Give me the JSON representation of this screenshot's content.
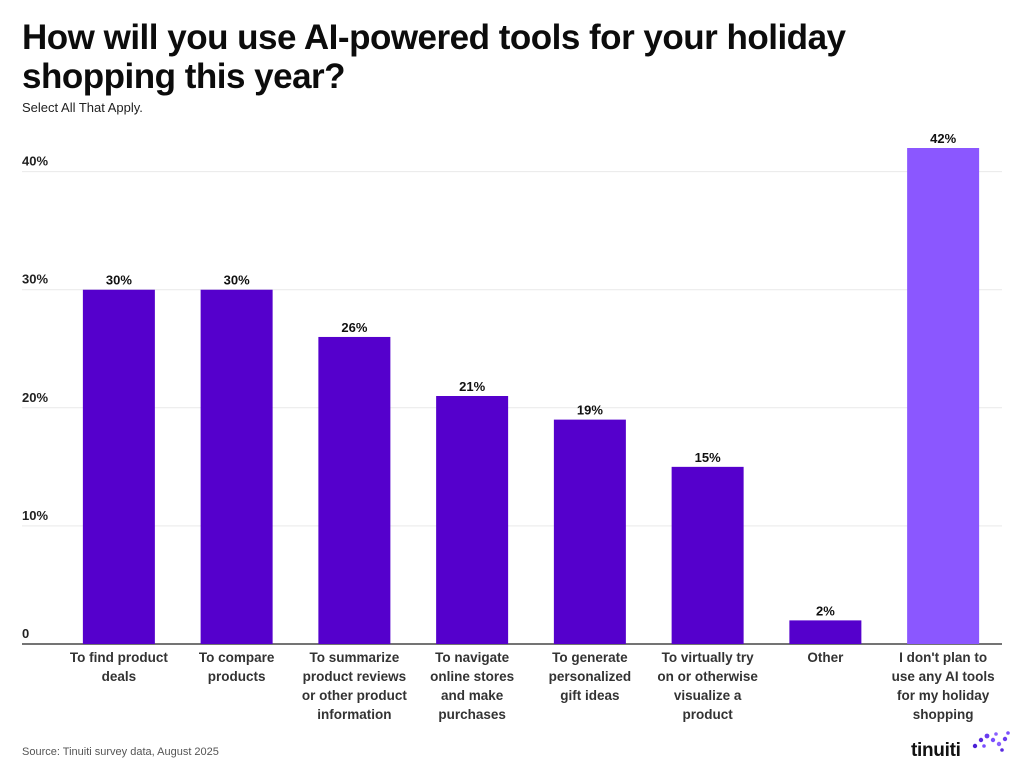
{
  "header": {
    "title": "How will you use AI-powered tools for your holiday shopping this year?",
    "subtitle": "Select All That Apply."
  },
  "footer": {
    "source": "Source: Tinuiti survey data, August 2025",
    "logo_text": "tinuiti"
  },
  "colors": {
    "bar": "#5500cc",
    "bar_highlight": "#8b57ff",
    "grid": "#e9e9e9",
    "axis": "#222222"
  },
  "chart_data": {
    "type": "bar",
    "categories": [
      [
        "To find product",
        "deals"
      ],
      [
        "To compare",
        "products"
      ],
      [
        "To summarize",
        "product reviews",
        "or other product",
        "information"
      ],
      [
        "To navigate",
        "online stores",
        "and make",
        "purchases"
      ],
      [
        "To generate",
        "personalized",
        "gift ideas"
      ],
      [
        "To virtually try",
        "on or otherwise",
        "visualize a",
        "product"
      ],
      [
        "Other"
      ],
      [
        "I don't plan to",
        "use any AI tools",
        "for my holiday",
        "shopping"
      ]
    ],
    "values": [
      30,
      30,
      26,
      21,
      19,
      15,
      2,
      42
    ],
    "data_labels": [
      "30%",
      "30%",
      "26%",
      "21%",
      "19%",
      "15%",
      "2%",
      "42%"
    ],
    "highlight_index": 7,
    "ylim": [
      0,
      44
    ],
    "yticks": [
      0,
      10,
      20,
      30,
      40
    ],
    "ytick_labels": [
      "0",
      "10%",
      "20%",
      "30%",
      "40%"
    ],
    "grid": true,
    "legend": false
  }
}
